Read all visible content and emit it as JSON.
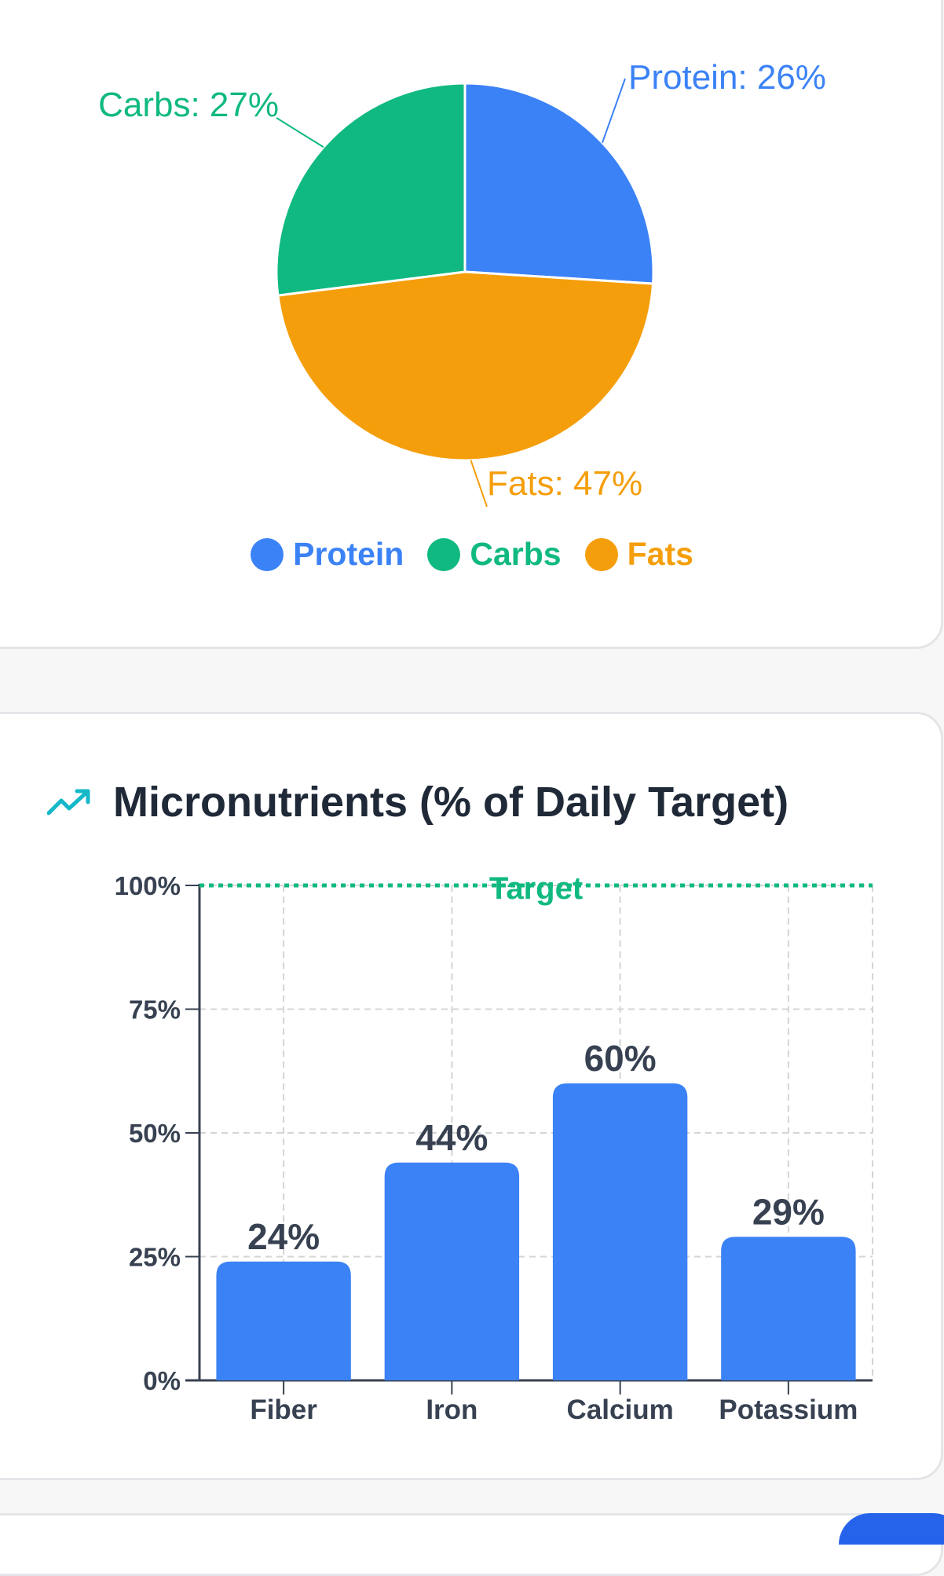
{
  "macros": {
    "legend": [
      {
        "label": "Protein",
        "color": "#3b82f6"
      },
      {
        "label": "Carbs",
        "color": "#10b981"
      },
      {
        "label": "Fats",
        "color": "#f59e0b"
      }
    ]
  },
  "micronutrients": {
    "title": "Micronutrients (% of Daily Target)",
    "icon": "trending-up-icon",
    "target_label": "Target"
  },
  "chart_data": [
    {
      "type": "pie",
      "slices": [
        {
          "label": "Protein",
          "value": 26,
          "display": "Protein: 26%",
          "color": "#3b82f6"
        },
        {
          "label": "Fats",
          "value": 47,
          "display": "Fats: 47%",
          "color": "#f59e0b"
        },
        {
          "label": "Carbs",
          "value": 27,
          "display": "Carbs: 27%",
          "color": "#10b981"
        }
      ],
      "legend_position": "bottom"
    },
    {
      "type": "bar",
      "title": "Micronutrients (% of Daily Target)",
      "categories": [
        "Fiber",
        "Iron",
        "Calcium",
        "Potassium"
      ],
      "values": [
        24,
        44,
        60,
        29
      ],
      "value_labels": [
        "24%",
        "44%",
        "60%",
        "29%"
      ],
      "ylim": [
        0,
        100
      ],
      "yticks": [
        0,
        25,
        50,
        75,
        100
      ],
      "ytick_labels": [
        "0%",
        "25%",
        "50%",
        "75%",
        "100%"
      ],
      "reference_line": {
        "value": 100,
        "label": "Target",
        "color": "#10b981"
      },
      "bar_color": "#3b82f6",
      "grid": true
    }
  ]
}
